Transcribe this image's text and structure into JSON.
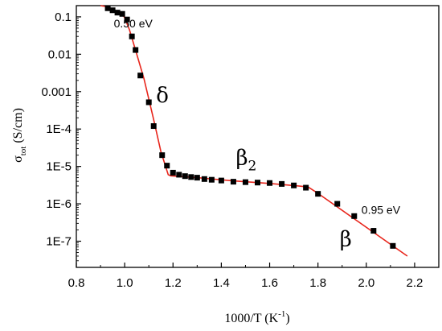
{
  "chart_data": {
    "type": "scatter",
    "xlabel": {
      "main": "1000/T (K",
      "sup": "-1",
      "end": ")"
    },
    "ylabel": {
      "sigma": "σ",
      "sub": "tot",
      "rest": " (S/cm)"
    },
    "xlim": [
      0.8,
      2.3
    ],
    "ylim_log10": [
      -7.7,
      -0.7
    ],
    "y_scale": "log",
    "grid": false,
    "legend": "none",
    "x_ticks": [
      0.8,
      1.0,
      1.2,
      1.4,
      1.6,
      1.8,
      2.0,
      2.2
    ],
    "x_tick_labels": [
      "0.8",
      "1.0",
      "1.2",
      "1.4",
      "1.6",
      "1.8",
      "2.0",
      "2.2"
    ],
    "y_ticks_log10": [
      -1,
      -2,
      -3,
      -4,
      -5,
      -6,
      -7
    ],
    "y_tick_labels": [
      "0.1",
      "0.01",
      "0.001",
      "1E-4",
      "1E-5",
      "1E-6",
      "1E-7"
    ],
    "series": [
      {
        "kind": "points",
        "color": "#000000",
        "x": [
          0.93,
          0.95,
          0.97,
          0.99,
          1.01,
          1.03,
          1.045,
          1.065,
          1.1,
          1.12,
          1.155,
          1.175,
          1.2,
          1.225,
          1.25,
          1.275,
          1.3,
          1.33,
          1.36,
          1.4,
          1.45,
          1.5,
          1.55,
          1.6,
          1.65,
          1.7,
          1.75,
          1.8,
          1.88,
          1.95,
          2.03,
          2.11
        ],
        "y": [
          0.17,
          0.15,
          0.13,
          0.12,
          0.085,
          0.03,
          0.013,
          0.0027,
          0.00052,
          0.00012,
          2e-05,
          1.05e-05,
          6.8e-06,
          6e-06,
          5.5e-06,
          5.2e-06,
          5e-06,
          4.6e-06,
          4.4e-06,
          4.2e-06,
          3.9e-06,
          3.8e-06,
          3.7e-06,
          3.6e-06,
          3.4e-06,
          3.1e-06,
          2.7e-06,
          1.85e-06,
          1e-06,
          4.7e-07,
          1.9e-07,
          7.5e-08
        ]
      },
      {
        "kind": "fit-line",
        "color": "#e8261c",
        "x": [
          0.9,
          0.93,
          0.99,
          1.0,
          1.02,
          1.05,
          1.08,
          1.12,
          1.15,
          1.18,
          1.19,
          1.3,
          1.45,
          1.6,
          1.72,
          1.76,
          1.8,
          2.17
        ],
        "y": [
          0.2,
          0.185,
          0.12,
          0.095,
          0.045,
          0.01,
          0.0022,
          0.00018,
          2.5e-05,
          6e-06,
          5.6e-06,
          5e-06,
          4.1e-06,
          3.5e-06,
          3e-06,
          2.8e-06,
          1.9e-06,
          4e-08
        ]
      }
    ],
    "annotations": [
      {
        "id": "ea-low",
        "text": "0.50 eV",
        "x": 0.955,
        "y": 0.052,
        "style": "sans"
      },
      {
        "id": "delta",
        "text": "δ",
        "x": 1.13,
        "y": 0.00052,
        "style": "greek"
      },
      {
        "id": "beta2",
        "base": "β",
        "sub": "2",
        "x": 1.46,
        "y": 1.1e-05,
        "style": "greek"
      },
      {
        "id": "ea-high",
        "text": "0.95 eV",
        "x": 1.98,
        "y": 5.4e-07,
        "style": "sans"
      },
      {
        "id": "beta",
        "text": "β",
        "x": 1.89,
        "y": 7.5e-08,
        "style": "greek"
      }
    ]
  }
}
